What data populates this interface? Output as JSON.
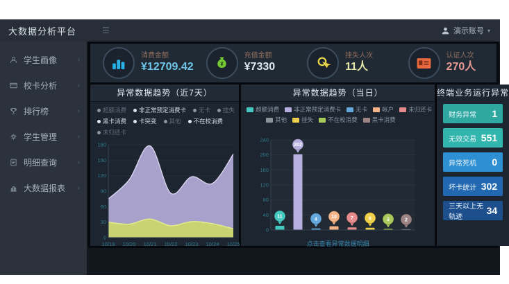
{
  "app": {
    "title": "大数据分析平台",
    "user": "演示账号"
  },
  "sidebar": {
    "items": [
      {
        "label": "学生画像",
        "icon": "user-icon"
      },
      {
        "label": "校卡分析",
        "icon": "card-icon"
      },
      {
        "label": "排行榜",
        "icon": "trophy-icon"
      },
      {
        "label": "学生管理",
        "icon": "settings-icon"
      },
      {
        "label": "明细查询",
        "icon": "document-icon"
      },
      {
        "label": "大数据报表",
        "icon": "report-icon"
      }
    ]
  },
  "kpis": [
    {
      "label": "消费金额",
      "value": "¥12709.42",
      "value_color": "#6ec6e8",
      "icon": "coins-icon",
      "icon_color": "#29b2e8"
    },
    {
      "label": "充值金额",
      "value": "¥7330",
      "value_color": "#dfe9ee",
      "icon": "moneybag-icon",
      "icon_color": "#74c832"
    },
    {
      "label": "挂失人次",
      "value": "11人",
      "value_color": "#e3e6a8",
      "icon": "tap-icon",
      "icon_color": "#e5d44a"
    },
    {
      "label": "认证人次",
      "value": "270人",
      "value_color": "#e89a93",
      "icon": "idcard-icon",
      "icon_color": "#e8693f"
    }
  ],
  "panels": {
    "trend7": {
      "title": "异常数据趋势（近7天）",
      "legend_rows": [
        [
          {
            "label": "超额消费",
            "active": false
          },
          {
            "label": "非正常预定消费卡",
            "active": true
          },
          {
            "label": "无卡",
            "active": false
          },
          {
            "label": "挂失",
            "active": false
          }
        ],
        [
          {
            "label": "黑卡消费",
            "active": true
          },
          {
            "label": "卡突变",
            "active": true
          },
          {
            "label": "其他",
            "active": false
          },
          {
            "label": "不在校消费",
            "active": true
          }
        ],
        [
          {
            "label": "未归还卡",
            "active": false
          }
        ]
      ]
    },
    "today": {
      "title": "异常数据趋势（当日）",
      "caption": "点击查看异常数据明细",
      "legend_row_break": 5
    },
    "terminal": {
      "title": "终端业务运行异常",
      "rows": [
        {
          "label": "财务异常",
          "value": "1",
          "bg": "#2ea8a1"
        },
        {
          "label": "无效交易",
          "value": "551",
          "bg": "#31b5ad"
        },
        {
          "label": "异常死机",
          "value": "0",
          "bg": "#2e8fd2"
        },
        {
          "label": "坏卡统计",
          "value": "302",
          "bg": "#2268b0"
        },
        {
          "label": "三天以上无轨迹",
          "value": "34",
          "bg": "#1c4f8c"
        }
      ]
    }
  },
  "chart_data": [
    {
      "type": "area",
      "title": "异常数据趋势（近7天）",
      "categories": [
        "10/19",
        "10/20",
        "10/21",
        "10/22",
        "10/23",
        "10/24",
        "10/25"
      ],
      "series": [
        {
          "name": "非正常预定消费卡",
          "color": "#b3abd9",
          "line": "#d9d4ee",
          "values": [
            75,
            112,
            178,
            86,
            118,
            105,
            162
          ]
        },
        {
          "name": "不在校消费",
          "color": "#ccd76a",
          "line": "#e4ee8a",
          "values": [
            30,
            26,
            36,
            23,
            31,
            27,
            17
          ]
        }
      ],
      "xlabel": "",
      "ylabel": "",
      "ylim": [
        0,
        180
      ],
      "yticks": [
        0,
        30,
        60,
        90,
        120,
        150,
        180
      ],
      "grid": true,
      "legend_position": "top"
    },
    {
      "type": "bar",
      "title": "异常数据趋势（当日）",
      "categories": [
        "超额消费",
        "非正常预定消费卡",
        "无卡",
        "帐户",
        "未归还卡",
        "其他",
        "挂失",
        "不在校消费",
        "黑卡消费"
      ],
      "values": [
        11,
        202,
        4,
        10,
        7,
        0,
        6,
        3,
        2
      ],
      "colors": [
        "#45c8c0",
        "#b7afe0",
        "#64a8dc",
        "#f5b488",
        "#e68b8b",
        "#8d939a",
        "#efd04a",
        "#a8c95c",
        "#9c8484"
      ],
      "xlabel": "",
      "ylabel": "",
      "ylim": [
        0,
        240
      ],
      "yticks": [
        0,
        40,
        80,
        120,
        160,
        200,
        240
      ],
      "grid": true,
      "legend_position": "top"
    }
  ]
}
